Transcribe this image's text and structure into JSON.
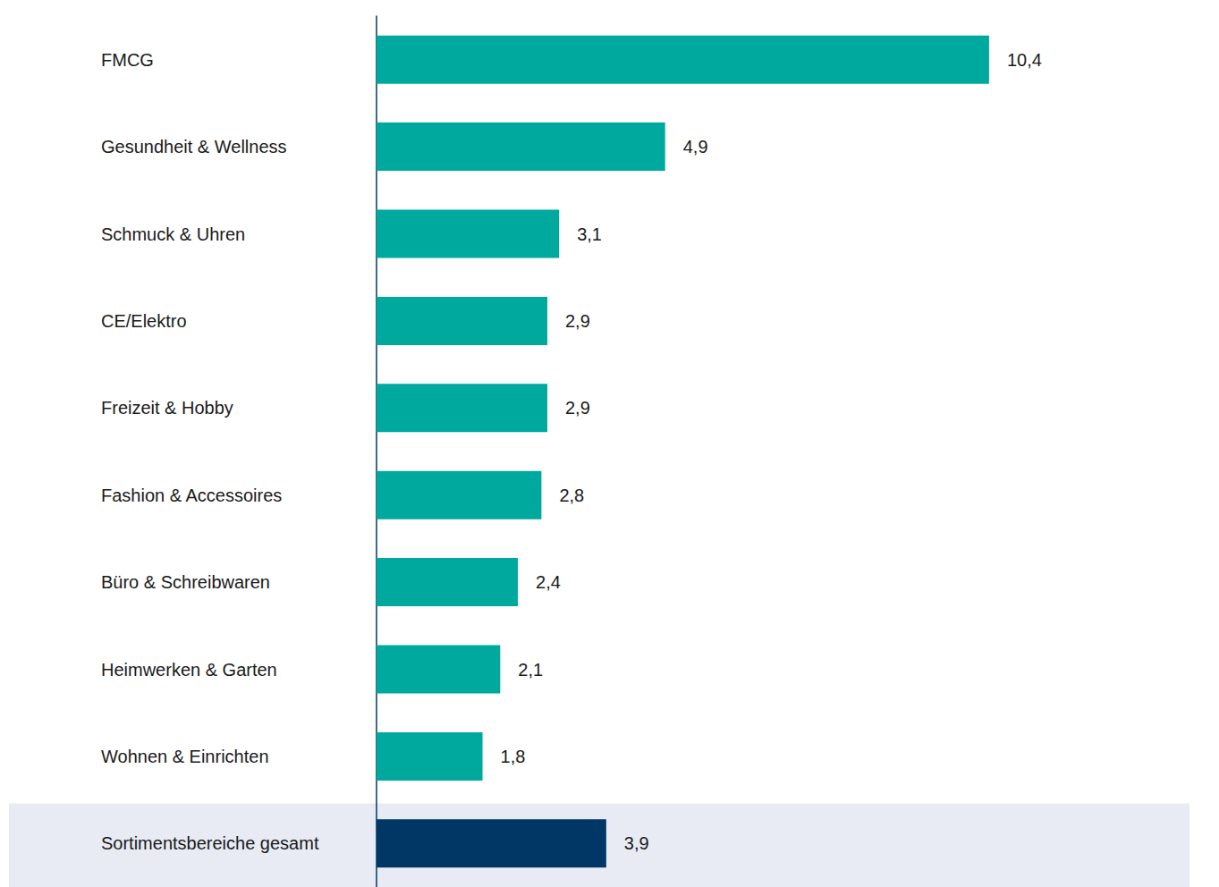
{
  "chart_data": {
    "type": "bar",
    "orientation": "horizontal",
    "categories": [
      "FMCG",
      "Gesundheit & Wellness",
      "Schmuck & Uhren",
      "CE/Elektro",
      "Freizeit & Hobby",
      "Fashion & Accessoires",
      "Büro & Schreibwaren",
      "Heimwerken & Garten",
      "Wohnen & Einrichten",
      "Sortimentsbereiche gesamt"
    ],
    "values": [
      10.4,
      4.9,
      3.1,
      2.9,
      2.9,
      2.8,
      2.4,
      2.1,
      1.8,
      3.9
    ],
    "value_labels": [
      "10,4",
      "4,9",
      "3,1",
      "2,9",
      "2,9",
      "2,8",
      "2,4",
      "2,1",
      "1,8",
      "3,9"
    ],
    "colors": [
      "#00a99d",
      "#00a99d",
      "#00a99d",
      "#00a99d",
      "#00a99d",
      "#00a99d",
      "#00a99d",
      "#00a99d",
      "#00a99d",
      "#003764"
    ],
    "xlim": [
      0,
      14
    ],
    "data_labels": true,
    "tick_labels": "y",
    "grid": false
  }
}
